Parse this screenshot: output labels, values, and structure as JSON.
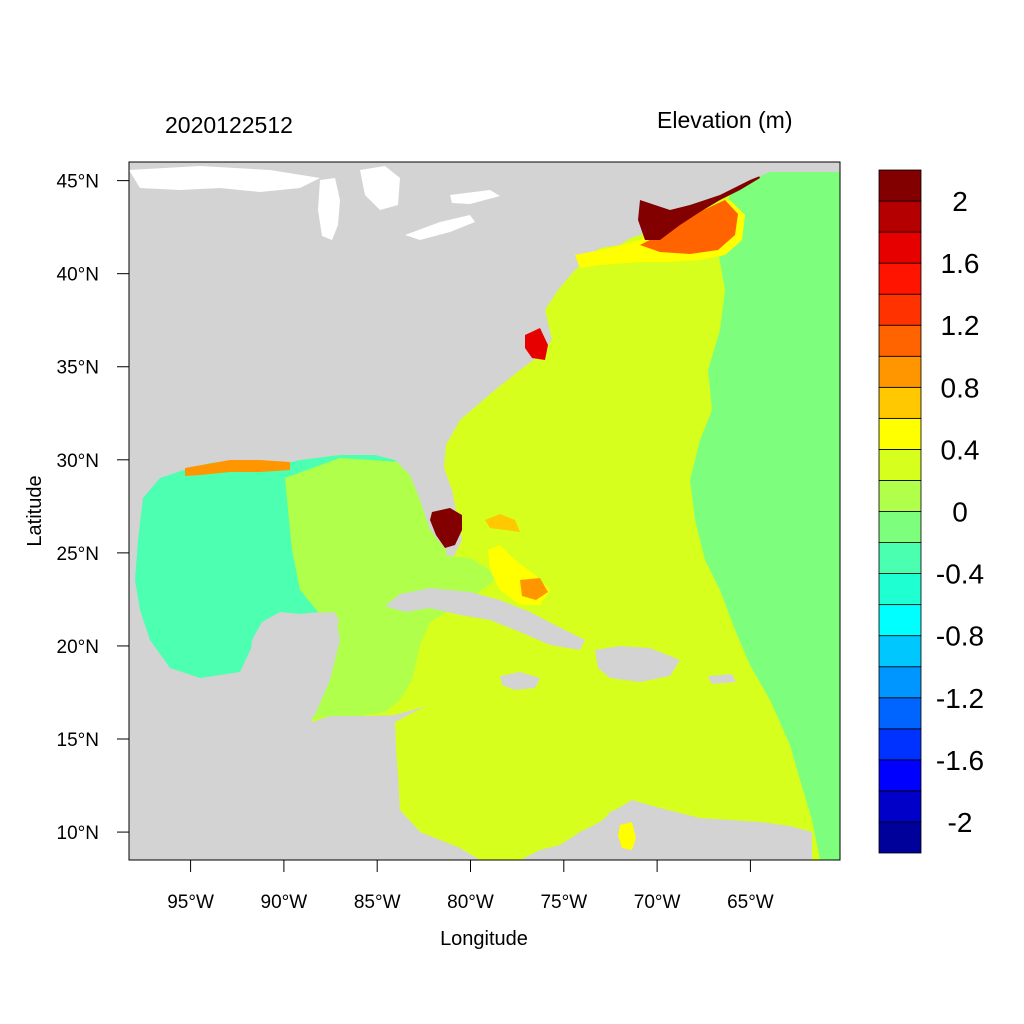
{
  "title_left": "2020122512",
  "title_right": "Elevation (m)",
  "xlabel": "Longitude",
  "ylabel": "Latitude",
  "lon_range": [
    -98.3,
    -60.2
  ],
  "lat_range": [
    8.5,
    46.0
  ],
  "x_ticks": [
    {
      "value": -95,
      "label": "95°W"
    },
    {
      "value": -90,
      "label": "90°W"
    },
    {
      "value": -85,
      "label": "85°W"
    },
    {
      "value": -80,
      "label": "80°W"
    },
    {
      "value": -75,
      "label": "75°W"
    },
    {
      "value": -70,
      "label": "70°W"
    },
    {
      "value": -65,
      "label": "65°W"
    }
  ],
  "y_ticks": [
    {
      "value": 45,
      "label": "45°N"
    },
    {
      "value": 40,
      "label": "40°N"
    },
    {
      "value": 35,
      "label": "35°N"
    },
    {
      "value": 30,
      "label": "30°N"
    },
    {
      "value": 25,
      "label": "25°N"
    },
    {
      "value": 20,
      "label": "20°N"
    },
    {
      "value": 15,
      "label": "15°N"
    },
    {
      "value": 10,
      "label": "10°N"
    }
  ],
  "colorbar": {
    "colors": [
      "#00009a",
      "#0000c8",
      "#0000ff",
      "#0032ff",
      "#0064ff",
      "#0096ff",
      "#00c8ff",
      "#00ffff",
      "#1effd2",
      "#4bffb0",
      "#7dff7d",
      "#afff4b",
      "#d7ff1e",
      "#ffff00",
      "#ffc800",
      "#ff9600",
      "#ff6400",
      "#ff3200",
      "#ff1400",
      "#e60000",
      "#b40000",
      "#820000"
    ],
    "labels": [
      {
        "value": 2.0,
        "label": "2"
      },
      {
        "value": 1.6,
        "label": "1.6"
      },
      {
        "value": 1.2,
        "label": "1.2"
      },
      {
        "value": 0.8,
        "label": "0.8"
      },
      {
        "value": 0.4,
        "label": "0.4"
      },
      {
        "value": 0.0,
        "label": "0"
      },
      {
        "value": -0.4,
        "label": "-0.4"
      },
      {
        "value": -0.8,
        "label": "-0.8"
      },
      {
        "value": -1.2,
        "label": "-1.2"
      },
      {
        "value": -1.6,
        "label": "-1.6"
      },
      {
        "value": -2.0,
        "label": "-2"
      }
    ]
  },
  "colors": {
    "land": "#d3d3d3",
    "lake": "#ffffff",
    "gulf": "#4dffb0",
    "western_caribbean": "#afff4b",
    "atlantic": "#d7ff1e",
    "eastern_atlantic": "#7dff7d",
    "surge_max": "#820000"
  }
}
